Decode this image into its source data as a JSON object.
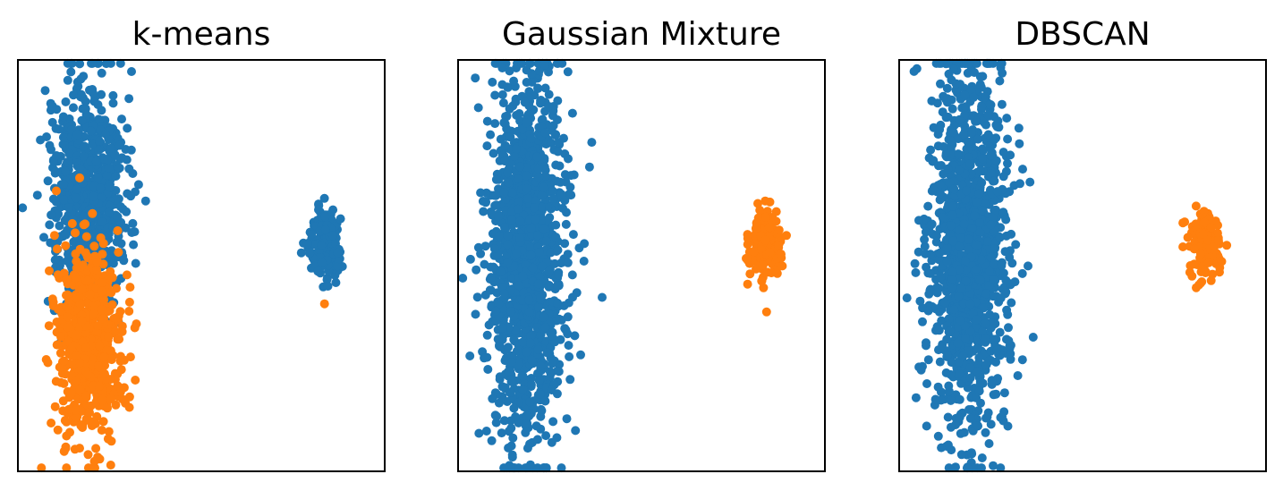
{
  "figure": {
    "point_colors": {
      "cluster_0": "#1f77b4",
      "cluster_1": "#ff7f0e"
    }
  },
  "chart_data": [
    {
      "type": "scatter",
      "title": "k-means",
      "xlabel": "",
      "ylabel": "",
      "xlim": [
        -1.75,
        3.0
      ],
      "ylim": [
        -3.8,
        3.2
      ],
      "grid": false,
      "axes_ticks": false,
      "note_on_assignment": "left blob split by y at about -0.3; right blob all cluster_0 except one low outlier",
      "clusters": [
        {
          "id": "cluster_0",
          "color": "#1f77b4",
          "regions": [
            {
              "shape": "elongated blob",
              "center": [
                -0.85,
                1.0
              ],
              "spread": [
                0.25,
                0.95
              ],
              "count": 700
            },
            {
              "shape": "compact blob",
              "center": [
                2.22,
                0.05
              ],
              "spread": [
                0.1,
                0.28
              ],
              "count": 170
            }
          ]
        },
        {
          "id": "cluster_1",
          "color": "#ff7f0e",
          "regions": [
            {
              "shape": "elongated blob",
              "center": [
                -0.85,
                -1.55
              ],
              "spread": [
                0.22,
                0.85
              ],
              "count": 620
            },
            {
              "shape": "outlier",
              "center": [
                2.22,
                -0.95
              ],
              "spread": [
                0,
                0
              ],
              "count": 1
            }
          ]
        }
      ]
    },
    {
      "type": "scatter",
      "title": "Gaussian Mixture",
      "xlabel": "",
      "ylabel": "",
      "xlim": [
        -1.75,
        3.0
      ],
      "ylim": [
        -3.8,
        3.2
      ],
      "grid": false,
      "axes_ticks": false,
      "clusters": [
        {
          "id": "cluster_0",
          "color": "#1f77b4",
          "regions": [
            {
              "shape": "elongated blob",
              "center": [
                -0.85,
                -0.1
              ],
              "spread": [
                0.25,
                1.55
              ],
              "count": 1300
            }
          ]
        },
        {
          "id": "cluster_1",
          "color": "#ff7f0e",
          "regions": [
            {
              "shape": "compact blob",
              "center": [
                2.22,
                0.05
              ],
              "spread": [
                0.1,
                0.28
              ],
              "count": 170
            }
          ]
        }
      ]
    },
    {
      "type": "scatter",
      "title": "DBSCAN",
      "xlabel": "",
      "ylabel": "",
      "xlim": [
        -1.75,
        3.0
      ],
      "ylim": [
        -3.8,
        3.2
      ],
      "grid": false,
      "axes_ticks": false,
      "clusters": [
        {
          "id": "cluster_0",
          "color": "#1f77b4",
          "regions": [
            {
              "shape": "elongated blob",
              "center": [
                -0.85,
                -0.1
              ],
              "spread": [
                0.25,
                1.55
              ],
              "count": 1300
            }
          ]
        },
        {
          "id": "cluster_1",
          "color": "#ff7f0e",
          "regions": [
            {
              "shape": "compact blob",
              "center": [
                2.22,
                0.05
              ],
              "spread": [
                0.1,
                0.28
              ],
              "count": 170
            }
          ]
        }
      ]
    }
  ]
}
